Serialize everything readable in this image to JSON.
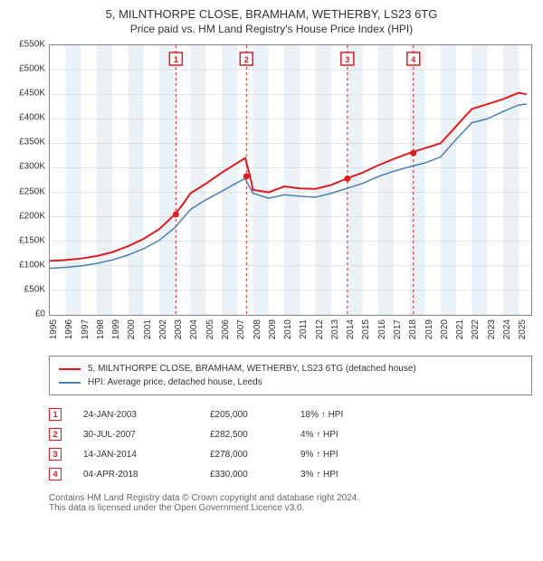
{
  "title": "5, MILNTHORPE CLOSE, BRAMHAM, WETHERBY, LS23 6TG",
  "subtitle": "Price paid vs. HM Land Registry's House Price Index (HPI)",
  "chart": {
    "type": "line",
    "background_color": "#ffffff",
    "grid_color": "#cccccc",
    "band_color": "#eaf2f8",
    "border_color": "#888888",
    "ylim": [
      0,
      550000
    ],
    "ytick_step": 50000,
    "y_ticks": [
      "£0",
      "£50K",
      "£100K",
      "£150K",
      "£200K",
      "£250K",
      "£300K",
      "£350K",
      "£400K",
      "£450K",
      "£500K",
      "£550K"
    ],
    "xlim": [
      1995,
      2025.8
    ],
    "x_ticks": [
      1995,
      1996,
      1997,
      1998,
      1999,
      2000,
      2001,
      2002,
      2003,
      2004,
      2005,
      2006,
      2007,
      2008,
      2009,
      2010,
      2011,
      2012,
      2013,
      2014,
      2015,
      2016,
      2017,
      2018,
      2019,
      2020,
      2021,
      2022,
      2023,
      2024,
      2025
    ],
    "series_property": {
      "label": "5, MILNTHORPE CLOSE, BRAMHAM, WETHERBY, LS23 6TG (detached house)",
      "color": "#e31a1c",
      "width": 2,
      "points": [
        [
          1995,
          110000
        ],
        [
          1996,
          112000
        ],
        [
          1997,
          115000
        ],
        [
          1998,
          120000
        ],
        [
          1999,
          128000
        ],
        [
          2000,
          140000
        ],
        [
          2001,
          155000
        ],
        [
          2002,
          175000
        ],
        [
          2003,
          205000
        ],
        [
          2003.5,
          225000
        ],
        [
          2004,
          248000
        ],
        [
          2005,
          268000
        ],
        [
          2006,
          290000
        ],
        [
          2007,
          310000
        ],
        [
          2007.5,
          320000
        ],
        [
          2007.8,
          285000
        ],
        [
          2008,
          255000
        ],
        [
          2009,
          250000
        ],
        [
          2010,
          262000
        ],
        [
          2011,
          258000
        ],
        [
          2012,
          257000
        ],
        [
          2013,
          265000
        ],
        [
          2014,
          278000
        ],
        [
          2015,
          290000
        ],
        [
          2016,
          305000
        ],
        [
          2017,
          318000
        ],
        [
          2018,
          330000
        ],
        [
          2019,
          340000
        ],
        [
          2020,
          350000
        ],
        [
          2021,
          385000
        ],
        [
          2022,
          420000
        ],
        [
          2023,
          430000
        ],
        [
          2024,
          440000
        ],
        [
          2025,
          453000
        ],
        [
          2025.5,
          450000
        ]
      ]
    },
    "series_hpi": {
      "label": "HPI: Average price, detached house, Leeds",
      "color": "#4a7fb5",
      "width": 1.5,
      "points": [
        [
          1995,
          95000
        ],
        [
          1996,
          97000
        ],
        [
          1997,
          100000
        ],
        [
          1998,
          105000
        ],
        [
          1999,
          112000
        ],
        [
          2000,
          122000
        ],
        [
          2001,
          135000
        ],
        [
          2002,
          152000
        ],
        [
          2003,
          178000
        ],
        [
          2004,
          215000
        ],
        [
          2005,
          235000
        ],
        [
          2006,
          252000
        ],
        [
          2007,
          270000
        ],
        [
          2007.5,
          278000
        ],
        [
          2008,
          248000
        ],
        [
          2009,
          238000
        ],
        [
          2010,
          245000
        ],
        [
          2011,
          242000
        ],
        [
          2012,
          240000
        ],
        [
          2013,
          248000
        ],
        [
          2014,
          258000
        ],
        [
          2015,
          268000
        ],
        [
          2016,
          282000
        ],
        [
          2017,
          293000
        ],
        [
          2018,
          302000
        ],
        [
          2019,
          310000
        ],
        [
          2020,
          322000
        ],
        [
          2021,
          358000
        ],
        [
          2022,
          392000
        ],
        [
          2023,
          400000
        ],
        [
          2024,
          415000
        ],
        [
          2025,
          428000
        ],
        [
          2025.5,
          430000
        ]
      ]
    },
    "sale_markers": [
      {
        "n": "1",
        "x": 2003.07,
        "y": 205000,
        "color": "#e31a1c"
      },
      {
        "n": "2",
        "x": 2007.58,
        "y": 282500,
        "color": "#e31a1c"
      },
      {
        "n": "3",
        "x": 2014.04,
        "y": 278000,
        "color": "#e31a1c"
      },
      {
        "n": "4",
        "x": 2018.26,
        "y": 330000,
        "color": "#e31a1c"
      }
    ],
    "marker_vline_color": "#e31a1c",
    "marker_vline_dash": "3,3"
  },
  "legend": {
    "items": [
      {
        "color": "#e31a1c",
        "label": "5, MILNTHORPE CLOSE, BRAMHAM, WETHERBY, LS23 6TG (detached house)"
      },
      {
        "color": "#4a7fb5",
        "label": "HPI: Average price, detached house, Leeds"
      }
    ]
  },
  "sales": [
    {
      "n": "1",
      "date": "24-JAN-2003",
      "price": "£205,000",
      "diff": "18% ↑ HPI",
      "color": "#e31a1c"
    },
    {
      "n": "2",
      "date": "30-JUL-2007",
      "price": "£282,500",
      "diff": "4% ↑ HPI",
      "color": "#e31a1c"
    },
    {
      "n": "3",
      "date": "14-JAN-2014",
      "price": "£278,000",
      "diff": "9% ↑ HPI",
      "color": "#e31a1c"
    },
    {
      "n": "4",
      "date": "04-APR-2018",
      "price": "£330,000",
      "diff": "3% ↑ HPI",
      "color": "#e31a1c"
    }
  ],
  "footer": {
    "line1": "Contains HM Land Registry data © Crown copyright and database right 2024.",
    "line2": "This data is licensed under the Open Government Licence v3.0."
  }
}
